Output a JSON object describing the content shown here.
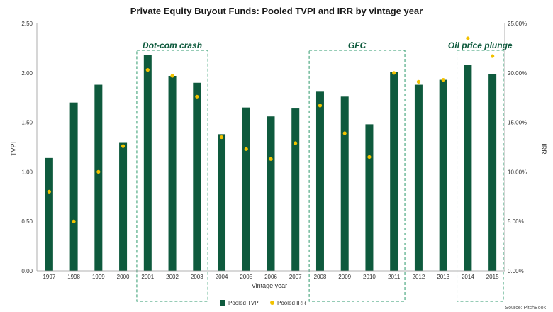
{
  "chart_data": {
    "type": "bar",
    "title": "Private Equity Buyout Funds: Pooled TVPI and IRR by vintage year",
    "xlabel": "Vintage year",
    "ylabel": "TVPI",
    "y2label": "IRR",
    "categories": [
      "1997",
      "1998",
      "1999",
      "2000",
      "2001",
      "2002",
      "2003",
      "2004",
      "2005",
      "2006",
      "2007",
      "2008",
      "2009",
      "2010",
      "2011",
      "2012",
      "2013",
      "2014",
      "2015"
    ],
    "series": [
      {
        "name": "Pooled TVPI",
        "kind": "bar",
        "axis": "left",
        "color": "#0e5a3d",
        "values": [
          1.14,
          1.7,
          1.88,
          1.3,
          2.18,
          1.97,
          1.9,
          1.38,
          1.65,
          1.56,
          1.64,
          1.81,
          1.76,
          1.48,
          2.01,
          1.88,
          1.93,
          2.08,
          1.99
        ]
      },
      {
        "name": "Pooled IRR",
        "kind": "scatter",
        "axis": "right",
        "color": "#f2c200",
        "values": [
          8.0,
          5.0,
          10.0,
          12.6,
          20.3,
          19.7,
          17.6,
          13.5,
          12.3,
          11.3,
          12.9,
          16.7,
          13.9,
          11.5,
          20.0,
          19.1,
          19.3,
          23.5,
          21.7
        ]
      }
    ],
    "ylim": [
      0,
      2.5
    ],
    "y2lim": [
      0,
      25
    ],
    "yticks": [
      "0.00",
      "0.50",
      "1.00",
      "1.50",
      "2.00",
      "2.50"
    ],
    "y2ticks": [
      "0.00%",
      "5.00%",
      "10.00%",
      "15.00%",
      "20.00%",
      "25.00%"
    ],
    "annotations": [
      {
        "label": "Dot-com crash",
        "from": "2001",
        "to": "2003"
      },
      {
        "label": "GFC",
        "from": "2008",
        "to": "2011"
      },
      {
        "label": "Oil price plunge",
        "from": "2014",
        "to": "2015"
      }
    ],
    "legend_position": "bottom",
    "grid": false,
    "source": "Source: PitchBook"
  }
}
